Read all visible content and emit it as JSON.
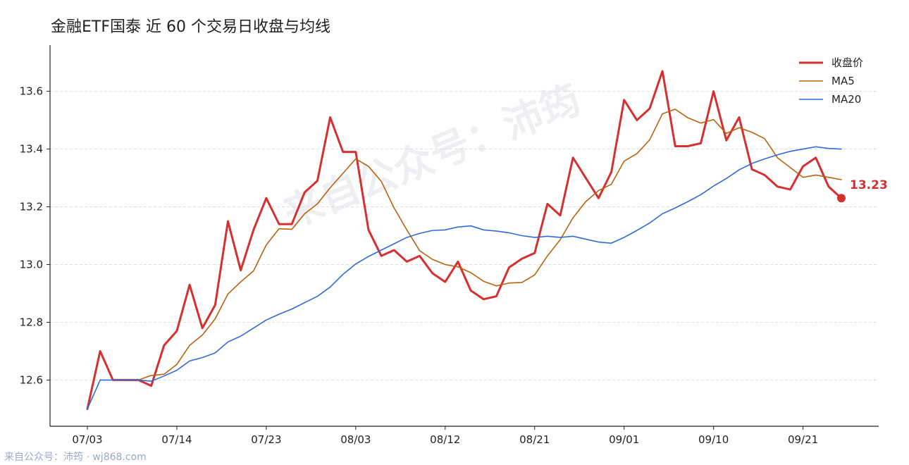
{
  "chart_data": {
    "type": "line",
    "title": "金融ETF国泰 近 60 个交易日收盘与均线",
    "x_tick_labels": [
      "07/03",
      "07/14",
      "07/23",
      "08/03",
      "08/12",
      "08/21",
      "09/01",
      "09/10",
      "09/21"
    ],
    "x_tick_index": [
      0,
      7,
      14,
      21,
      28,
      35,
      42,
      49,
      56
    ],
    "n_points": 60,
    "ylim": [
      12.44,
      13.76
    ],
    "y_ticks": [
      12.6,
      12.8,
      13.0,
      13.2,
      13.4,
      13.6
    ],
    "y_tick_labels": [
      "12.6",
      "12.8",
      "13.0",
      "13.2",
      "13.4",
      "13.6"
    ],
    "grid": "horizontal dashed",
    "legend_position": "top-right",
    "series": [
      {
        "name": "收盘价",
        "color": "#d62f2f",
        "values": [
          12.5,
          12.7,
          12.6,
          12.6,
          12.6,
          12.58,
          12.72,
          12.77,
          12.93,
          12.78,
          12.86,
          13.15,
          12.98,
          13.12,
          13.23,
          13.14,
          13.14,
          13.25,
          13.29,
          13.51,
          13.39,
          13.39,
          13.12,
          13.03,
          13.05,
          13.01,
          13.03,
          12.97,
          12.94,
          13.01,
          12.91,
          12.88,
          12.89,
          12.99,
          13.02,
          13.04,
          13.21,
          13.17,
          13.37,
          13.3,
          13.23,
          13.32,
          13.57,
          13.5,
          13.54,
          13.67,
          13.41,
          13.41,
          13.42,
          13.6,
          13.43,
          13.51,
          13.33,
          13.31,
          13.27,
          13.26,
          13.34,
          13.37,
          13.27,
          13.23
        ]
      },
      {
        "name": "MA5",
        "color": "#b8620f",
        "start_index": 4,
        "values": [
          12.6,
          12.616,
          12.62,
          12.654,
          12.72,
          12.756,
          12.812,
          12.898,
          12.94,
          12.978,
          13.068,
          13.124,
          13.122,
          13.176,
          13.21,
          13.266,
          13.316,
          13.366,
          13.34,
          13.288,
          13.196,
          13.12,
          13.048,
          13.018,
          13.0,
          12.992,
          12.972,
          12.942,
          12.926,
          12.936,
          12.938,
          12.964,
          13.03,
          13.086,
          13.162,
          13.218,
          13.256,
          13.278,
          13.358,
          13.384,
          13.432,
          13.522,
          13.538,
          13.508,
          13.49,
          13.502,
          13.454,
          13.474,
          13.458,
          13.436,
          13.37,
          13.336,
          13.302,
          13.31,
          13.302,
          13.294
        ]
      },
      {
        "name": "MA20",
        "color": "#2f6bd8",
        "values": [
          12.5,
          12.6,
          12.6,
          12.6,
          12.6,
          12.596,
          12.614,
          12.634,
          12.666,
          12.678,
          12.694,
          12.732,
          12.752,
          12.78,
          12.808,
          12.828,
          12.846,
          12.868,
          12.89,
          12.922,
          12.966,
          13.002,
          13.028,
          13.05,
          13.072,
          13.094,
          13.108,
          13.118,
          13.12,
          13.13,
          13.134,
          13.12,
          13.116,
          13.11,
          13.1,
          13.094,
          13.098,
          13.094,
          13.098,
          13.088,
          13.078,
          13.074,
          13.094,
          13.118,
          13.144,
          13.176,
          13.196,
          13.218,
          13.242,
          13.272,
          13.298,
          13.328,
          13.35,
          13.366,
          13.38,
          13.392,
          13.4,
          13.408,
          13.402,
          13.4
        ]
      }
    ],
    "end_label": "13.23",
    "end_label_color": "#d62f2f"
  },
  "watermark": "来自公众号：沛筠",
  "footer": "来自公众号：沛筠 · wj868.com"
}
